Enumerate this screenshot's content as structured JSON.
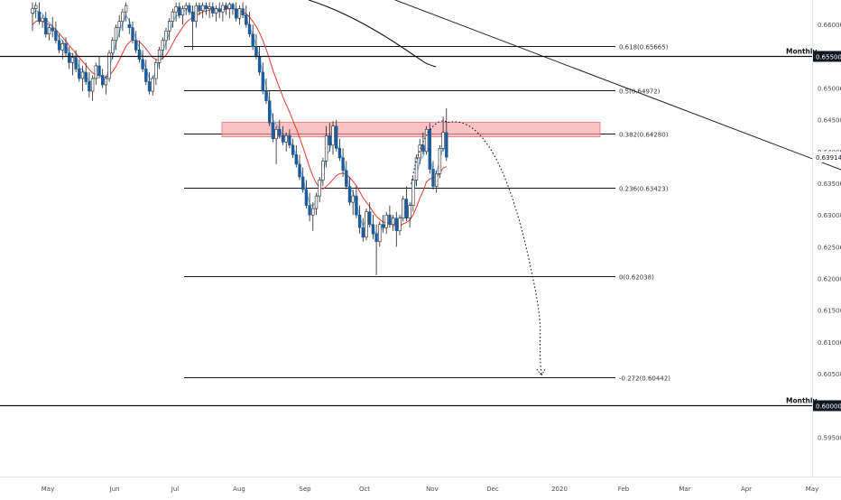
{
  "chart_data": {
    "type": "candlestick",
    "price_range": [
      0.5925,
      0.6635
    ],
    "y_ticks": [
      "0.66000",
      "0.65500",
      "0.65000",
      "0.64500",
      "0.64000",
      "0.63500",
      "0.63000",
      "0.62500",
      "0.62000",
      "0.61500",
      "0.61000",
      "0.60500",
      "0.60000",
      "0.59500"
    ],
    "x_ticks": [
      "May",
      "Jun",
      "Jul",
      "Aug",
      "Sep",
      "Oct",
      "Nov",
      "Dec",
      "2020",
      "Feb",
      "Mar",
      "Apr",
      "May"
    ],
    "last_price": "0.63914",
    "monthly_levels": [
      {
        "label": "Monthly",
        "value": "0.65500"
      },
      {
        "label": "Monthly",
        "value": "0.60000"
      }
    ],
    "fib_levels": [
      {
        "label": "0.618(0.65665)",
        "value": 0.65665
      },
      {
        "label": "0.5(0.64972)",
        "value": 0.64972
      },
      {
        "label": "0.382(0.64280)",
        "value": 0.6428
      },
      {
        "label": "0.236(0.63423)",
        "value": 0.63423
      },
      {
        "label": "0(0.62038)",
        "value": 0.62038
      },
      {
        "label": "-0.272(0.60442)",
        "value": 0.60442
      }
    ],
    "resistance_zone": {
      "low": 0.6423,
      "high": 0.6446
    },
    "candles": [
      [
        0.6618,
        0.6635,
        0.659,
        0.6625
      ],
      [
        0.6625,
        0.6635,
        0.661,
        0.663
      ],
      [
        0.662,
        0.6635,
        0.66,
        0.6605
      ],
      [
        0.6605,
        0.6615,
        0.6595,
        0.661
      ],
      [
        0.661,
        0.662,
        0.658,
        0.6585
      ],
      [
        0.6585,
        0.66,
        0.6575,
        0.6595
      ],
      [
        0.6595,
        0.6612,
        0.658,
        0.659
      ],
      [
        0.659,
        0.6605,
        0.657,
        0.6575
      ],
      [
        0.6575,
        0.6585,
        0.6555,
        0.656
      ],
      [
        0.656,
        0.6575,
        0.6545,
        0.657
      ],
      [
        0.657,
        0.658,
        0.655,
        0.6555
      ],
      [
        0.6555,
        0.6565,
        0.653,
        0.654
      ],
      [
        0.654,
        0.6555,
        0.652,
        0.6548
      ],
      [
        0.6548,
        0.656,
        0.6525,
        0.653
      ],
      [
        0.653,
        0.6545,
        0.651,
        0.6515
      ],
      [
        0.6515,
        0.6535,
        0.6495,
        0.6525
      ],
      [
        0.6525,
        0.654,
        0.6505,
        0.651
      ],
      [
        0.651,
        0.6525,
        0.6485,
        0.6495
      ],
      [
        0.6495,
        0.652,
        0.648,
        0.6515
      ],
      [
        0.6515,
        0.654,
        0.6505,
        0.6535
      ],
      [
        0.6535,
        0.655,
        0.6515,
        0.652
      ],
      [
        0.652,
        0.653,
        0.65,
        0.6505
      ],
      [
        0.6505,
        0.652,
        0.649,
        0.6515
      ],
      [
        0.6515,
        0.656,
        0.651,
        0.6555
      ],
      [
        0.6555,
        0.658,
        0.6545,
        0.6575
      ],
      [
        0.6575,
        0.66,
        0.656,
        0.6595
      ],
      [
        0.6595,
        0.6615,
        0.658,
        0.6605
      ],
      [
        0.6605,
        0.6625,
        0.659,
        0.662
      ],
      [
        0.662,
        0.6635,
        0.6605,
        0.663
      ],
      [
        0.66,
        0.661,
        0.6585,
        0.6595
      ],
      [
        0.6595,
        0.6605,
        0.657,
        0.6575
      ],
      [
        0.6575,
        0.659,
        0.6555,
        0.656
      ],
      [
        0.656,
        0.6575,
        0.654,
        0.6545
      ],
      [
        0.6545,
        0.656,
        0.6525,
        0.653
      ],
      [
        0.653,
        0.6545,
        0.6505,
        0.651
      ],
      [
        0.651,
        0.6525,
        0.649,
        0.6495
      ],
      [
        0.6495,
        0.652,
        0.6488,
        0.6515
      ],
      [
        0.6515,
        0.6545,
        0.6505,
        0.654
      ],
      [
        0.654,
        0.6565,
        0.653,
        0.656
      ],
      [
        0.656,
        0.658,
        0.6545,
        0.6575
      ],
      [
        0.6575,
        0.6595,
        0.656,
        0.659
      ],
      [
        0.659,
        0.661,
        0.6575,
        0.6605
      ],
      [
        0.6605,
        0.6625,
        0.6595,
        0.662
      ],
      [
        0.662,
        0.6635,
        0.6605,
        0.6628
      ],
      [
        0.6628,
        0.6635,
        0.661,
        0.6615
      ],
      [
        0.6615,
        0.663,
        0.66,
        0.6625
      ],
      [
        0.6625,
        0.6635,
        0.6615,
        0.663
      ],
      [
        0.663,
        0.6635,
        0.6615,
        0.662
      ],
      [
        0.662,
        0.663,
        0.656,
        0.6605
      ],
      [
        0.6605,
        0.6635,
        0.6595,
        0.663
      ],
      [
        0.663,
        0.6635,
        0.6615,
        0.6622
      ],
      [
        0.6622,
        0.6635,
        0.661,
        0.663
      ],
      [
        0.663,
        0.6635,
        0.6615,
        0.6625
      ],
      [
        0.6625,
        0.6635,
        0.661,
        0.6628
      ],
      [
        0.6628,
        0.6635,
        0.6612,
        0.6618
      ],
      [
        0.6618,
        0.663,
        0.6605,
        0.6625
      ],
      [
        0.6625,
        0.6635,
        0.661,
        0.662
      ],
      [
        0.662,
        0.6635,
        0.6605,
        0.663
      ],
      [
        0.663,
        0.6635,
        0.6615,
        0.6625
      ],
      [
        0.6625,
        0.6635,
        0.661,
        0.6632
      ],
      [
        0.6632,
        0.6635,
        0.6615,
        0.6625
      ],
      [
        0.6625,
        0.6635,
        0.6605,
        0.661
      ],
      [
        0.661,
        0.663,
        0.66,
        0.6625
      ],
      [
        0.6625,
        0.6635,
        0.661,
        0.6615
      ],
      [
        0.6615,
        0.663,
        0.6595,
        0.66
      ],
      [
        0.66,
        0.662,
        0.658,
        0.6585
      ],
      [
        0.6585,
        0.66,
        0.656,
        0.6565
      ],
      [
        0.6565,
        0.6585,
        0.6545,
        0.655
      ],
      [
        0.655,
        0.6565,
        0.652,
        0.6525
      ],
      [
        0.6525,
        0.654,
        0.649,
        0.6495
      ],
      [
        0.6495,
        0.6515,
        0.6475,
        0.648
      ],
      [
        0.648,
        0.6495,
        0.644,
        0.6445
      ],
      [
        0.6445,
        0.646,
        0.6415,
        0.642
      ],
      [
        0.642,
        0.644,
        0.638,
        0.6435
      ],
      [
        0.6435,
        0.645,
        0.642,
        0.6425
      ],
      [
        0.6425,
        0.644,
        0.641,
        0.6415
      ],
      [
        0.6415,
        0.643,
        0.64,
        0.6425
      ],
      [
        0.6425,
        0.6435,
        0.6405,
        0.641
      ],
      [
        0.641,
        0.642,
        0.639,
        0.6395
      ],
      [
        0.6395,
        0.641,
        0.6375,
        0.638
      ],
      [
        0.638,
        0.6395,
        0.6355,
        0.636
      ],
      [
        0.636,
        0.6375,
        0.6335,
        0.634
      ],
      [
        0.634,
        0.6355,
        0.631,
        0.6315
      ],
      [
        0.6315,
        0.6335,
        0.629,
        0.63
      ],
      [
        0.63,
        0.632,
        0.6275,
        0.631
      ],
      [
        0.631,
        0.6335,
        0.63,
        0.633
      ],
      [
        0.633,
        0.636,
        0.632,
        0.6355
      ],
      [
        0.6355,
        0.639,
        0.6345,
        0.6385
      ],
      [
        0.6385,
        0.644,
        0.6375,
        0.6425
      ],
      [
        0.6425,
        0.6445,
        0.64,
        0.641
      ],
      [
        0.641,
        0.6448,
        0.6395,
        0.644
      ],
      [
        0.644,
        0.645,
        0.64,
        0.6405
      ],
      [
        0.6405,
        0.642,
        0.6385,
        0.639
      ],
      [
        0.639,
        0.6405,
        0.636,
        0.637
      ],
      [
        0.637,
        0.6385,
        0.634,
        0.6345
      ],
      [
        0.6345,
        0.636,
        0.6315,
        0.632
      ],
      [
        0.632,
        0.634,
        0.63,
        0.633
      ],
      [
        0.633,
        0.6345,
        0.6295,
        0.63
      ],
      [
        0.63,
        0.6315,
        0.627,
        0.628
      ],
      [
        0.628,
        0.6295,
        0.6258,
        0.6265
      ],
      [
        0.6265,
        0.631,
        0.626,
        0.6305
      ],
      [
        0.6305,
        0.632,
        0.628,
        0.6285
      ],
      [
        0.6285,
        0.63,
        0.6262,
        0.627
      ],
      [
        0.627,
        0.6285,
        0.6205,
        0.6258
      ],
      [
        0.6258,
        0.629,
        0.625,
        0.6285
      ],
      [
        0.6285,
        0.63,
        0.6272,
        0.628
      ],
      [
        0.628,
        0.6305,
        0.627,
        0.63
      ],
      [
        0.63,
        0.6315,
        0.628,
        0.6285
      ],
      [
        0.6285,
        0.63,
        0.6275,
        0.6295
      ],
      [
        0.6295,
        0.6305,
        0.625,
        0.6275
      ],
      [
        0.6275,
        0.63,
        0.6268,
        0.6295
      ],
      [
        0.6295,
        0.633,
        0.629,
        0.6325
      ],
      [
        0.6325,
        0.6345,
        0.629,
        0.6295
      ],
      [
        0.6295,
        0.632,
        0.628,
        0.6315
      ],
      [
        0.6315,
        0.636,
        0.6305,
        0.6355
      ],
      [
        0.6355,
        0.6395,
        0.6345,
        0.639
      ],
      [
        0.639,
        0.642,
        0.638,
        0.641
      ],
      [
        0.641,
        0.643,
        0.6395,
        0.64
      ],
      [
        0.64,
        0.644,
        0.6395,
        0.6435
      ],
      [
        0.6435,
        0.6445,
        0.6365,
        0.6372
      ],
      [
        0.6372,
        0.6385,
        0.634,
        0.6345
      ],
      [
        0.6345,
        0.637,
        0.6335,
        0.6365
      ],
      [
        0.6365,
        0.641,
        0.6358,
        0.6405
      ],
      [
        0.6405,
        0.6455,
        0.64,
        0.643
      ],
      [
        0.643,
        0.6468,
        0.6385,
        0.6391
      ]
    ],
    "sma_red": [
      0.66,
      0.6605,
      0.6606,
      0.6605,
      0.6603,
      0.66,
      0.6597,
      0.6592,
      0.6586,
      0.658,
      0.6574,
      0.6567,
      0.6561,
      0.6555,
      0.6548,
      0.6542,
      0.6536,
      0.6529,
      0.6524,
      0.6521,
      0.652,
      0.6518,
      0.6517,
      0.652,
      0.6526,
      0.6534,
      0.6544,
      0.6555,
      0.6566,
      0.6572,
      0.6576,
      0.6575,
      0.6573,
      0.6568,
      0.6562,
      0.6555,
      0.6548,
      0.6545,
      0.6544,
      0.6547,
      0.6552,
      0.656,
      0.657,
      0.658,
      0.6588,
      0.6596,
      0.6603,
      0.6608,
      0.6611,
      0.6614,
      0.6617,
      0.662,
      0.6621,
      0.6623,
      0.6623,
      0.6624,
      0.6623,
      0.6624,
      0.6624,
      0.6625,
      0.6625,
      0.6623,
      0.6622,
      0.662,
      0.6617,
      0.6612,
      0.6605,
      0.6597,
      0.6587,
      0.6575,
      0.6561,
      0.6545,
      0.6528,
      0.6514,
      0.65,
      0.6486,
      0.6474,
      0.6462,
      0.6449,
      0.6436,
      0.6422,
      0.6407,
      0.6391,
      0.6375,
      0.6361,
      0.635,
      0.6343,
      0.6341,
      0.6345,
      0.635,
      0.6356,
      0.6362,
      0.6365,
      0.6366,
      0.6364,
      0.6359,
      0.6353,
      0.6346,
      0.6337,
      0.6327,
      0.632,
      0.6313,
      0.6305,
      0.6298,
      0.6293,
      0.6289,
      0.6287,
      0.6285,
      0.6285,
      0.6282,
      0.6282,
      0.6286,
      0.6288,
      0.6292,
      0.63,
      0.6312,
      0.6326,
      0.6338,
      0.6352,
      0.6357,
      0.6358,
      0.636,
      0.6366,
      0.6374,
      0.6376
    ],
    "sma_blue": [
      0.6615,
      0.6622,
      0.662,
      0.6617,
      0.6609,
      0.6603,
      0.6598,
      0.6589,
      0.6579,
      0.6575,
      0.6567,
      0.6557,
      0.6553,
      0.6544,
      0.6532,
      0.6529,
      0.6521,
      0.651,
      0.6512,
      0.6522,
      0.6521,
      0.6514,
      0.6514,
      0.6532,
      0.6551,
      0.6571,
      0.6587,
      0.6602,
      0.6615,
      0.6606,
      0.6593,
      0.6578,
      0.6563,
      0.6548,
      0.6531,
      0.6515,
      0.6515,
      0.6526,
      0.6542,
      0.6557,
      0.6572,
      0.6587,
      0.6603,
      0.6614,
      0.6614,
      0.6619,
      0.6624,
      0.6622,
      0.6614,
      0.6621,
      0.6621,
      0.6625,
      0.6625,
      0.6626,
      0.6622,
      0.6623,
      0.6622,
      0.6626,
      0.6625,
      0.6628,
      0.6627,
      0.6619,
      0.6621,
      0.6618,
      0.661,
      0.6598,
      0.6583,
      0.6568,
      0.6548,
      0.6523,
      0.6503,
      0.6476,
      0.645,
      0.6443,
      0.6435,
      0.6426,
      0.6425,
      0.6418,
      0.6407,
      0.6394,
      0.6377,
      0.6359,
      0.6337,
      0.6318,
      0.6314,
      0.6322,
      0.6339,
      0.6362,
      0.6393,
      0.6402,
      0.6421,
      0.6413,
      0.6401,
      0.6385,
      0.6365,
      0.6343,
      0.6336,
      0.6318,
      0.6299,
      0.6282,
      0.6294,
      0.6289,
      0.6279,
      0.6268,
      0.6277,
      0.6278,
      0.6289,
      0.6287,
      0.6291,
      0.6283,
      0.6289,
      0.6307,
      0.6301,
      0.6308,
      0.6331,
      0.636,
      0.6385,
      0.6392,
      0.6414,
      0.6393,
      0.6369,
      0.6367,
      0.6386,
      0.6408,
      0.6399
    ]
  }
}
